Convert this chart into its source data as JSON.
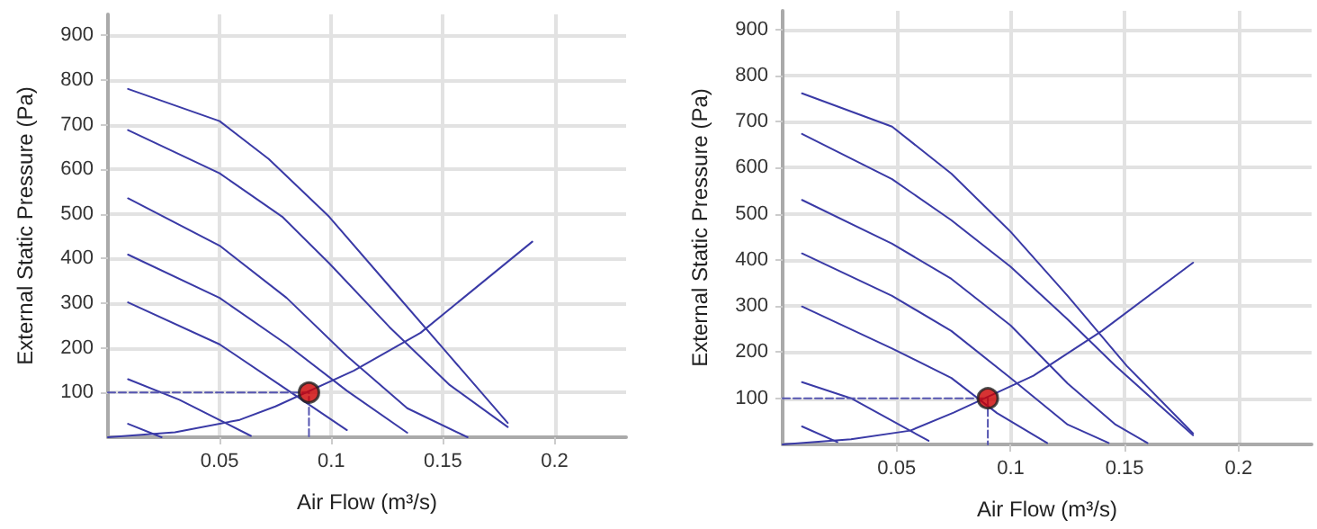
{
  "chart_data": [
    {
      "type": "line",
      "xlabel": "Air Flow (m³/s)",
      "ylabel": "External Static Pressure (Pa)",
      "xlim": [
        0,
        0.232
      ],
      "xticks": [
        0.05,
        0.1,
        0.15,
        0.2
      ],
      "ylim": [
        0,
        947
      ],
      "yticks": [
        100,
        200,
        300,
        400,
        500,
        600,
        700,
        800,
        900
      ],
      "grid": true,
      "marker": "none",
      "series": [
        {
          "color": "#3a3aa6",
          "x": [
            0.009,
            0.05,
            0.072,
            0.099,
            0.126,
            0.153,
            0.179
          ],
          "values": [
            780,
            708,
            623,
            494,
            338,
            182,
            32
          ]
        },
        {
          "color": "#3a3aa6",
          "x": [
            0.009,
            0.05,
            0.078,
            0.099,
            0.126,
            0.153,
            0.179
          ],
          "values": [
            688,
            591,
            494,
            390,
            247,
            117,
            23
          ]
        },
        {
          "color": "#3a3aa6",
          "x": [
            0.009,
            0.05,
            0.08,
            0.107,
            0.134,
            0.161
          ],
          "values": [
            535,
            429,
            312,
            182,
            65,
            0
          ]
        },
        {
          "color": "#3a3aa6",
          "x": [
            0.009,
            0.05,
            0.08,
            0.107,
            0.134
          ],
          "values": [
            409,
            312,
            208,
            104,
            10
          ]
        },
        {
          "color": "#3a3aa6",
          "x": [
            0.009,
            0.05,
            0.077,
            0.107
          ],
          "values": [
            302,
            208,
            117,
            16
          ]
        },
        {
          "color": "#3a3aa6",
          "x": [
            0.009,
            0.032,
            0.064
          ],
          "values": [
            130,
            84,
            3
          ]
        },
        {
          "color": "#3a3aa6",
          "x": [
            0.009,
            0.024
          ],
          "values": [
            30,
            0
          ]
        },
        {
          "color": "#3a3aa6",
          "x": [
            0,
            0.03,
            0.059,
            0.075,
            0.11,
            0.14,
            0.19
          ],
          "values": [
            0,
            11,
            39,
            69,
            149,
            234,
            438
          ]
        },
        {
          "color": "#5555b0",
          "line_style": "dashed",
          "x": [
            0,
            0.09,
            0.09
          ],
          "values": [
            100,
            100,
            0
          ]
        },
        {
          "type": "scatter",
          "marker": "circle",
          "color": "#cc0000",
          "x": [
            0.09
          ],
          "values": [
            100
          ]
        }
      ]
    },
    {
      "type": "line",
      "xlabel": "Air Flow (m³/s)",
      "ylabel": "External Static Pressure (Pa)",
      "xlim": [
        0,
        0.232
      ],
      "xticks": [
        0.05,
        0.1,
        0.15,
        0.2
      ],
      "ylim": [
        0,
        940
      ],
      "yticks": [
        100,
        200,
        300,
        400,
        500,
        600,
        700,
        800,
        900
      ],
      "grid": true,
      "marker": "none",
      "series": [
        {
          "color": "#3a3aa6",
          "x": [
            0.0085,
            0.048,
            0.074,
            0.1,
            0.125,
            0.151,
            0.18
          ],
          "values": [
            761,
            689,
            587,
            461,
            322,
            170,
            24
          ]
        },
        {
          "color": "#3a3aa6",
          "x": [
            0.0085,
            0.048,
            0.074,
            0.1,
            0.125,
            0.146,
            0.18
          ],
          "values": [
            673,
            575,
            486,
            385,
            271,
            170,
            20
          ]
        },
        {
          "color": "#3a3aa6",
          "x": [
            0.0085,
            0.048,
            0.074,
            0.1,
            0.125,
            0.146,
            0.16
          ],
          "values": [
            530,
            435,
            359,
            258,
            132,
            43,
            3
          ]
        },
        {
          "color": "#3a3aa6",
          "x": [
            0.0085,
            0.048,
            0.074,
            0.1,
            0.125,
            0.143
          ],
          "values": [
            414,
            322,
            246,
            144,
            43,
            3
          ]
        },
        {
          "color": "#3a3aa6",
          "x": [
            0.0085,
            0.048,
            0.074,
            0.094,
            0.116
          ],
          "values": [
            299,
            208,
            144,
            68,
            3
          ]
        },
        {
          "color": "#3a3aa6",
          "x": [
            0.0085,
            0.03,
            0.064
          ],
          "values": [
            135,
            100,
            8
          ]
        },
        {
          "color": "#3a3aa6",
          "x": [
            0.0085,
            0.024
          ],
          "values": [
            39,
            5
          ]
        },
        {
          "color": "#3a3aa6",
          "x": [
            0,
            0.03,
            0.056,
            0.075,
            0.11,
            0.14,
            0.18
          ],
          "values": [
            0,
            11,
            30,
            69,
            149,
            246,
            394
          ]
        },
        {
          "color": "#5555b0",
          "line_style": "dashed",
          "x": [
            0,
            0.09,
            0.09
          ],
          "values": [
            100,
            100,
            0
          ]
        },
        {
          "type": "scatter",
          "marker": "circle",
          "color": "#cc0000",
          "x": [
            0.09
          ],
          "values": [
            100
          ]
        }
      ]
    }
  ]
}
